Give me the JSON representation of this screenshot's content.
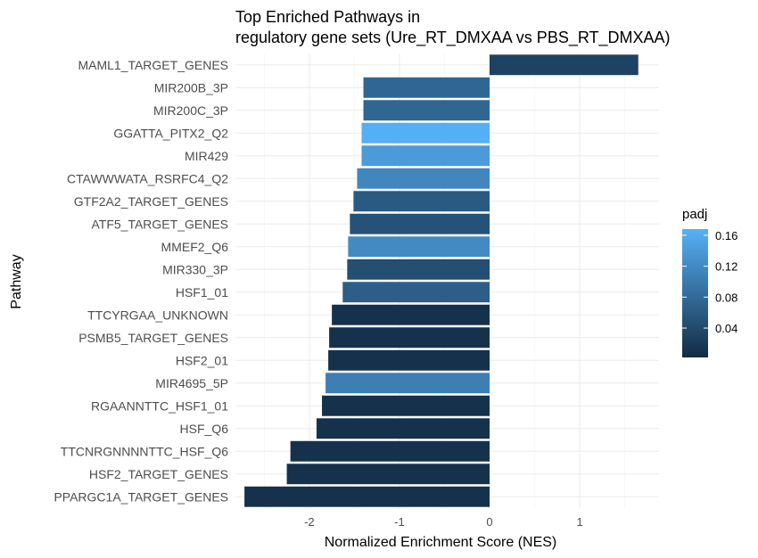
{
  "chart_data": {
    "type": "bar",
    "orientation": "horizontal",
    "title_lines": [
      "Top Enriched Pathways in",
      "regulatory gene sets (Ure_RT_DMXAA vs PBS_RT_DMXAA)"
    ],
    "xlabel": "Normalized Enrichment Score (NES)",
    "ylabel": "Pathway",
    "xlim": [
      -2.82,
      1.88
    ],
    "xticks": [
      -2,
      -1,
      0,
      1
    ],
    "xtick_labels": [
      "-2",
      "-1",
      "0",
      "1"
    ],
    "grid": true,
    "categories": [
      "MAML1_TARGET_GENES",
      "MIR200B_3P",
      "MIR200C_3P",
      "GGATTA_PITX2_Q2",
      "MIR429",
      "CTAWWWATA_RSRFC4_Q2",
      "GTF2A2_TARGET_GENES",
      "ATF5_TARGET_GENES",
      "MMEF2_Q6",
      "MIR330_3P",
      "HSF1_01",
      "TTCYRGAA_UNKNOWN",
      "PSMB5_TARGET_GENES",
      "HSF2_01",
      "MIR4695_5P",
      "RGAANNTTC_HSF1_01",
      "HSF_Q6",
      "TTCNRGNNNNTTC_HSF_Q6",
      "HSF2_TARGET_GENES",
      "PPARGC1A_TARGET_GENES"
    ],
    "values": [
      1.65,
      -1.4,
      -1.4,
      -1.42,
      -1.42,
      -1.47,
      -1.51,
      -1.55,
      -1.57,
      -1.58,
      -1.63,
      -1.75,
      -1.78,
      -1.79,
      -1.82,
      -1.86,
      -1.92,
      -2.21,
      -2.25,
      -2.72
    ],
    "padj": [
      0.03,
      0.075,
      0.075,
      0.165,
      0.14,
      0.115,
      0.06,
      0.05,
      0.12,
      0.045,
      0.065,
      0.01,
      0.01,
      0.01,
      0.105,
      0.01,
      0.01,
      0.01,
      0.01,
      0.01
    ],
    "legend": {
      "title": "padj",
      "position": "right",
      "ticks": [
        0.04,
        0.08,
        0.12,
        0.16
      ],
      "tick_labels": [
        "0.04",
        "0.08",
        "0.12",
        "0.16"
      ],
      "range": [
        0.002,
        0.168
      ],
      "low_color": "#132B43",
      "high_color": "#56B1F7"
    }
  }
}
